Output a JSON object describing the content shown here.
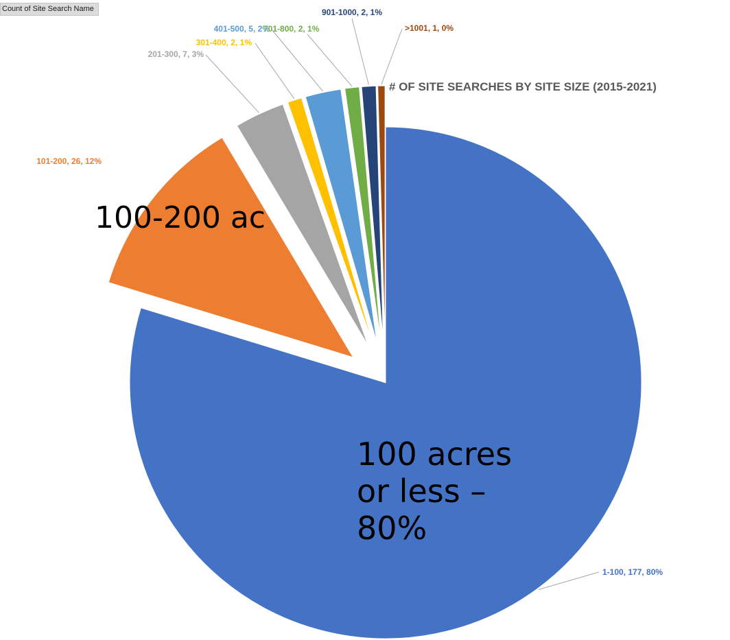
{
  "pivot": {
    "field_button_label": "Count of Site Search Name"
  },
  "chart_data": {
    "type": "pie",
    "title": "# OF SITE SEARCHES BY SITE SIZE (2015-2021)",
    "slices": [
      {
        "category": "1-100",
        "value": 177,
        "percent_label": "80%",
        "color": "#4472C4",
        "label": "1-100, 177, 80%",
        "label_color": "#4472C4",
        "exploded": false
      },
      {
        "category": "101-200",
        "value": 26,
        "percent_label": "12%",
        "color": "#ED7D31",
        "label": "101-200, 26, 12%",
        "label_color": "#ED7D31",
        "exploded": true
      },
      {
        "category": "201-300",
        "value": 7,
        "percent_label": "3%",
        "color": "#A5A5A5",
        "label": "201-300, 7, 3%",
        "label_color": "#A5A5A5",
        "exploded": true
      },
      {
        "category": "301-400",
        "value": 2,
        "percent_label": "1%",
        "color": "#FFC000",
        "label": "301-400, 2, 1%",
        "label_color": "#FFC000",
        "exploded": true
      },
      {
        "category": "401-500",
        "value": 5,
        "percent_label": "2%",
        "color": "#5B9BD5",
        "label": "401-500, 5, 2%",
        "label_color": "#5B9BD5",
        "exploded": true
      },
      {
        "category": "701-800",
        "value": 2,
        "percent_label": "1%",
        "color": "#70AD47",
        "label": "701-800, 2, 1%",
        "label_color": "#70AD47",
        "exploded": true
      },
      {
        "category": "901-1000",
        "value": 2,
        "percent_label": "1%",
        "color": "#264478",
        "label": "901-1000, 2, 1%",
        "label_color": "#264478",
        "exploded": true
      },
      {
        "category": ">1001",
        "value": 1,
        "percent_label": "0%",
        "color": "#9E480E",
        "label": ">1001, 1, 0%",
        "label_color": "#9E480E",
        "exploded": true
      }
    ],
    "annotations": [
      {
        "key": "small",
        "lines": [
          "100 acres",
          "or less –",
          "80%"
        ]
      },
      {
        "key": "mid",
        "lines": [
          "100-200 ac"
        ]
      }
    ],
    "legend": "none"
  }
}
